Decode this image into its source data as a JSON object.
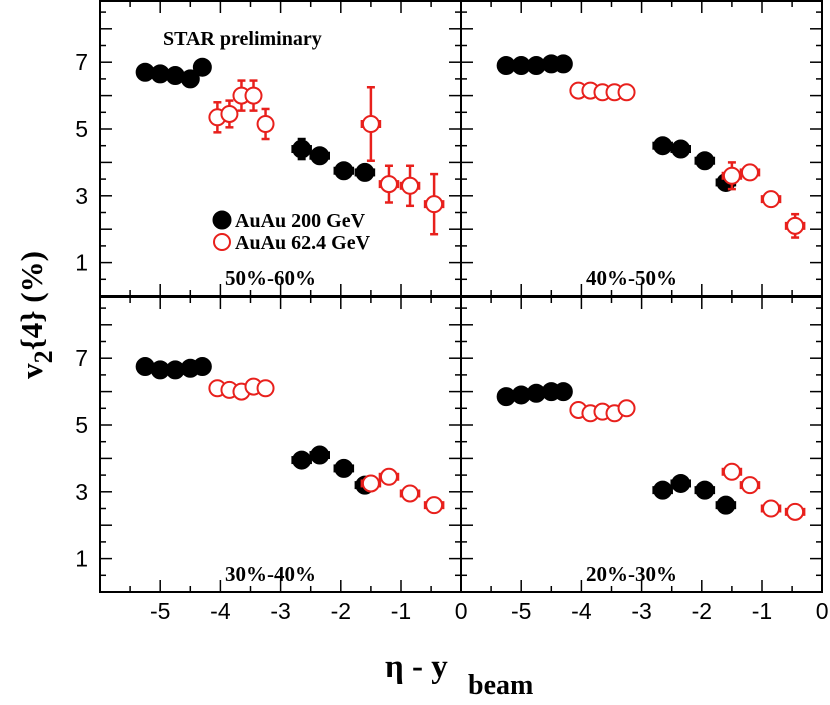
{
  "chart_data": {
    "type": "scatter",
    "xlabel": "η - y",
    "xlabel_sub": "beam",
    "ylabel": "v",
    "ylabel_sub": "2",
    "ylabel_rest": "{4} (%)",
    "annotation": "STAR preliminary",
    "xlim": [
      -6.0,
      0.0
    ],
    "ylim": [
      0.0,
      8.8
    ],
    "xticks": [
      "-5",
      "-4",
      "-3",
      "-2",
      "-1",
      "0"
    ],
    "yticks": [
      "1",
      "3",
      "5",
      "7"
    ],
    "legend": [
      {
        "name": "AuAu 200 GeV",
        "marker": "filled-circle",
        "color": "#000000"
      },
      {
        "name": "AuAu 62.4 GeV",
        "marker": "open-circle",
        "color": "#e8201c"
      }
    ],
    "panels": [
      {
        "label": "50%-60%",
        "series": [
          {
            "name": "AuAu 200 GeV",
            "x": [
              -5.25,
              -5.0,
              -4.75,
              -4.5,
              -4.3,
              -2.65,
              -2.35,
              -1.95,
              -1.6
            ],
            "y": [
              6.7,
              6.65,
              6.6,
              6.5,
              6.85,
              4.4,
              4.2,
              3.75,
              3.7
            ],
            "yerr": [
              0,
              0,
              0,
              0,
              0,
              0.3,
              0,
              0,
              0
            ],
            "xerr": [
              0,
              0,
              0,
              0,
              0,
              0.15,
              0.15,
              0.15,
              0.15
            ]
          },
          {
            "name": "AuAu 62.4 GeV",
            "x": [
              -4.05,
              -3.85,
              -3.65,
              -3.45,
              -3.25,
              -1.5,
              -1.2,
              -0.85,
              -0.45
            ],
            "y": [
              5.35,
              5.45,
              6.0,
              6.0,
              5.15,
              5.15,
              3.35,
              3.3,
              2.75
            ],
            "yerr": [
              0.45,
              0.4,
              0.45,
              0.45,
              0.45,
              1.1,
              0.55,
              0.6,
              0.9
            ],
            "xerr": [
              0,
              0,
              0,
              0,
              0,
              0.15,
              0.15,
              0.15,
              0.15
            ]
          }
        ]
      },
      {
        "label": "40%-50%",
        "series": [
          {
            "name": "AuAu 200 GeV",
            "x": [
              -5.25,
              -5.0,
              -4.75,
              -4.5,
              -4.3,
              -2.65,
              -2.35,
              -1.95,
              -1.6
            ],
            "y": [
              6.9,
              6.9,
              6.9,
              6.95,
              6.95,
              4.5,
              4.4,
              4.05,
              3.4
            ],
            "yerr": [
              0,
              0,
              0,
              0,
              0,
              0,
              0,
              0,
              0.2
            ],
            "xerr": [
              0,
              0,
              0,
              0,
              0,
              0.15,
              0.15,
              0.15,
              0.15
            ]
          },
          {
            "name": "AuAu 62.4 GeV",
            "x": [
              -4.05,
              -3.85,
              -3.65,
              -3.45,
              -3.25,
              -1.5,
              -1.2,
              -0.85,
              -0.45
            ],
            "y": [
              6.15,
              6.15,
              6.1,
              6.1,
              6.1,
              3.6,
              3.7,
              2.9,
              2.1
            ],
            "yerr": [
              0,
              0,
              0,
              0,
              0,
              0.4,
              0,
              0,
              0.35
            ],
            "xerr": [
              0,
              0,
              0,
              0,
              0,
              0.15,
              0.15,
              0.15,
              0.15
            ]
          }
        ]
      },
      {
        "label": "30%-40%",
        "series": [
          {
            "name": "AuAu 200 GeV",
            "x": [
              -5.25,
              -5.0,
              -4.75,
              -4.5,
              -4.3,
              -2.65,
              -2.35,
              -1.95,
              -1.6
            ],
            "y": [
              6.75,
              6.65,
              6.65,
              6.7,
              6.75,
              3.95,
              4.1,
              3.7,
              3.2
            ],
            "yerr": [
              0,
              0,
              0,
              0,
              0,
              0,
              0,
              0,
              0
            ],
            "xerr": [
              0,
              0,
              0,
              0,
              0,
              0.15,
              0.15,
              0.15,
              0.15
            ]
          },
          {
            "name": "AuAu 62.4 GeV",
            "x": [
              -4.05,
              -3.85,
              -3.65,
              -3.45,
              -3.25,
              -1.5,
              -1.2,
              -0.85,
              -0.45
            ],
            "y": [
              6.1,
              6.05,
              6.0,
              6.15,
              6.1,
              3.25,
              3.45,
              2.95,
              2.6
            ],
            "yerr": [
              0,
              0,
              0,
              0,
              0,
              0,
              0,
              0,
              0
            ],
            "xerr": [
              0,
              0,
              0,
              0,
              0,
              0.15,
              0.15,
              0.15,
              0.15
            ]
          }
        ]
      },
      {
        "label": "20%-30%",
        "series": [
          {
            "name": "AuAu 200 GeV",
            "x": [
              -5.25,
              -5.0,
              -4.75,
              -4.5,
              -4.3,
              -2.65,
              -2.35,
              -1.95,
              -1.6
            ],
            "y": [
              5.85,
              5.9,
              5.95,
              6.0,
              6.0,
              3.05,
              3.25,
              3.05,
              2.6
            ],
            "yerr": [
              0,
              0,
              0,
              0,
              0,
              0,
              0,
              0,
              0
            ],
            "xerr": [
              0,
              0,
              0,
              0,
              0,
              0.15,
              0.15,
              0.15,
              0.15
            ]
          },
          {
            "name": "AuAu 62.4 GeV",
            "x": [
              -4.05,
              -3.85,
              -3.65,
              -3.45,
              -3.25,
              -1.5,
              -1.2,
              -0.85,
              -0.45
            ],
            "y": [
              5.45,
              5.35,
              5.4,
              5.35,
              5.5,
              3.6,
              3.2,
              2.5,
              2.4
            ],
            "yerr": [
              0,
              0,
              0,
              0,
              0,
              0,
              0,
              0,
              0
            ],
            "xerr": [
              0,
              0,
              0,
              0,
              0,
              0.15,
              0.15,
              0.15,
              0.15
            ]
          }
        ]
      }
    ]
  }
}
